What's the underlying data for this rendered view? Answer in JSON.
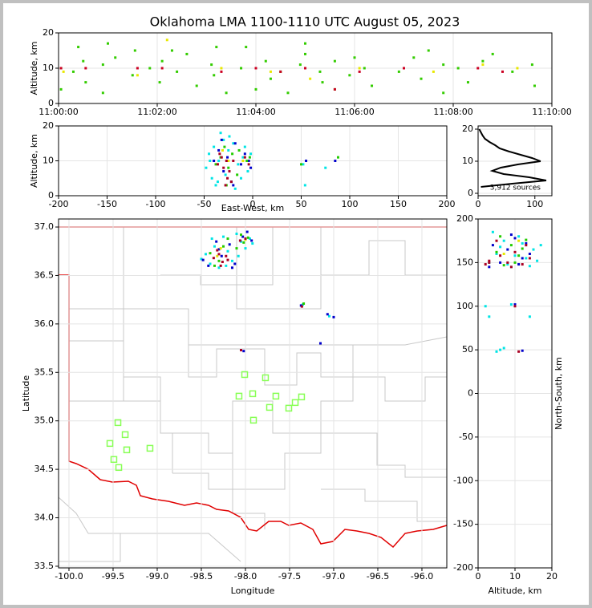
{
  "title": "Oklahoma LMA 1100-1110 UTC August 05, 2023",
  "chart_data": [
    {
      "type": "scatter",
      "ylabel": "Altitude, km",
      "xlim": [
        0,
        10
      ],
      "xticks": [
        {
          "value": 0,
          "label": "11:00:00"
        },
        {
          "value": 2,
          "label": "11:02:00"
        },
        {
          "value": 4,
          "label": "11:04:00"
        },
        {
          "value": 6,
          "label": "11:06:00"
        },
        {
          "value": 8,
          "label": "11:08:00"
        },
        {
          "value": 10,
          "label": "11:10:00"
        }
      ],
      "ylim": [
        0,
        20
      ],
      "yticks": [
        0,
        10,
        20
      ],
      "grid": true,
      "series": [
        {
          "color": "#33cc00",
          "x": [
            0.05,
            0.05,
            0.3,
            0.5,
            0.55,
            0.9,
            0.9,
            1.15,
            1.5,
            1.55,
            1.85,
            2.05,
            2.1,
            2.4,
            2.6,
            2.8,
            3.1,
            3.15,
            3.4,
            3.7,
            3.8,
            4.2,
            4.3,
            4.5,
            4.65,
            4.9,
            5.0,
            5.3,
            5.35,
            5.6,
            5.6,
            5.9,
            6.2,
            6.35,
            6.9,
            7.2,
            7.35,
            7.8,
            7.8,
            8.1,
            8.3,
            8.6,
            9.2,
            9.6,
            9.65,
            0.4,
            1.0,
            2.3,
            3.2,
            4.0,
            5.0,
            6.0,
            7.5,
            8.8
          ],
          "y": [
            10,
            4,
            9,
            12,
            6,
            11,
            3,
            13,
            8,
            15,
            10,
            6,
            12,
            9,
            14,
            5,
            11,
            8,
            3,
            10,
            16,
            12,
            7,
            9,
            3,
            11,
            14,
            9,
            6,
            12,
            4,
            8,
            10,
            5,
            9,
            13,
            7,
            11,
            3,
            10,
            6,
            12,
            9,
            11,
            5,
            16,
            17,
            15,
            16,
            4,
            17,
            13,
            15,
            14
          ]
        },
        {
          "color": "#e8e800",
          "x": [
            0.1,
            1.6,
            2.2,
            3.3,
            4.3,
            5.1,
            6.1,
            7.6,
            8.6,
            9.3
          ],
          "y": [
            9,
            8,
            18,
            10,
            9,
            7,
            10,
            9,
            11,
            10
          ]
        },
        {
          "color": "#cc0022",
          "x": [
            0.05,
            0.55,
            1.6,
            2.1,
            3.3,
            4.0,
            5.0,
            5.6,
            6.1,
            7.0,
            8.5,
            9.0,
            4.5
          ],
          "y": [
            10,
            10,
            10,
            10,
            9,
            10,
            10,
            4,
            9,
            10,
            10,
            9,
            9
          ]
        }
      ]
    },
    {
      "type": "scatter",
      "xlabel": "East-West, km",
      "ylabel": "Altitude, km",
      "xlim": [
        -200,
        200
      ],
      "xticks": [
        -200,
        -150,
        -100,
        -50,
        0,
        50,
        100,
        150,
        200
      ],
      "ylim": [
        0,
        20
      ],
      "yticks": [
        0,
        10,
        20
      ],
      "grid": true,
      "series": [
        {
          "color": "#00e5e5",
          "x": [
            -48,
            -45,
            -42,
            -40,
            -38,
            -35,
            -30,
            -28,
            -25,
            -22,
            -20,
            -15,
            -10,
            -5,
            -2,
            -44,
            -36,
            -24,
            -12,
            -8,
            52,
            54,
            75,
            -33,
            -18
          ],
          "y": [
            8,
            12,
            5,
            14,
            3,
            10,
            16,
            6,
            13,
            4,
            15,
            9,
            11,
            7,
            12,
            10,
            4,
            17,
            5,
            14,
            9,
            3,
            8,
            18,
            2
          ]
        },
        {
          "color": "#0000cc",
          "x": [
            -40,
            -35,
            -30,
            -26,
            -22,
            -18,
            -12,
            -8,
            -4,
            -2,
            -32,
            -20,
            85,
            55
          ],
          "y": [
            10,
            13,
            7,
            11,
            4,
            15,
            9,
            12,
            10,
            8,
            16,
            3,
            10,
            10
          ]
        },
        {
          "color": "#22cc00",
          "x": [
            -38,
            -33,
            -29,
            -25,
            -21,
            -16,
            -6,
            -3,
            -27,
            -14,
            88,
            50
          ],
          "y": [
            9,
            11,
            14,
            8,
            12,
            6,
            10,
            11,
            3,
            13,
            11,
            9
          ]
        },
        {
          "color": "#e8e800",
          "x": [
            -31,
            -25,
            -10
          ],
          "y": [
            13,
            10,
            10
          ]
        },
        {
          "color": "#aa0022",
          "x": [
            -36,
            -32,
            -30,
            -27,
            -24,
            -20,
            -34,
            -28,
            -22,
            -26,
            -8,
            -4
          ],
          "y": [
            9,
            11,
            8,
            10,
            7,
            10,
            12,
            3,
            4,
            5,
            11,
            9
          ]
        }
      ]
    },
    {
      "type": "line",
      "annotation": "3,912 sources",
      "xlim": [
        0,
        130
      ],
      "xticks": [
        0,
        100
      ],
      "ylim": [
        -0.75,
        21
      ],
      "yticks": [
        0,
        10,
        20
      ],
      "grid": true,
      "series": [
        {
          "color": "#000000",
          "x": [
            2,
            5,
            8,
            12,
            20,
            30,
            38,
            55,
            75,
            95,
            110,
            70,
            40,
            25,
            45,
            90,
            120,
            60,
            5
          ],
          "y": [
            20,
            19,
            18,
            17,
            16,
            15,
            14,
            13,
            12,
            11,
            10,
            9,
            8,
            7,
            6,
            5,
            4,
            3,
            2
          ]
        }
      ]
    },
    {
      "type": "scatter",
      "xlabel": "Longitude",
      "ylabel": "Latitude",
      "xlim": [
        -100.118,
        -95.718
      ],
      "xticks": [
        {
          "value": -100,
          "label": "-100.0"
        },
        -99.5,
        {
          "value": -99,
          "label": "-99.0"
        },
        -98.5,
        {
          "value": -98,
          "label": "-98.0"
        },
        -97.5,
        {
          "value": -97,
          "label": "-97.0"
        },
        -96.5,
        {
          "value": -96,
          "label": "-96.0"
        }
      ],
      "ylim": [
        33.483,
        37.083
      ],
      "yticks": [
        33.5,
        {
          "value": 34,
          "label": "34.0"
        },
        34.5,
        {
          "value": 35,
          "label": "35.0"
        },
        35.5,
        {
          "value": 36,
          "label": "36.0"
        },
        36.5,
        {
          "value": 37,
          "label": "37.0"
        }
      ],
      "grid": true,
      "series": [
        {
          "color": "#88ff55",
          "marker": "square-open",
          "x": [
            -99.445,
            -99.363,
            -99.536,
            -99.345,
            -99.082,
            -99.491,
            -99.436,
            -98.009,
            -97.773,
            -98.073,
            -97.918,
            -97.655,
            -97.364,
            -97.727,
            -97.509,
            -97.436,
            -97.909
          ],
          "y": [
            34.982,
            34.858,
            34.767,
            34.701,
            34.717,
            34.602,
            34.519,
            35.478,
            35.445,
            35.255,
            35.28,
            35.255,
            35.247,
            35.139,
            35.131,
            35.189,
            35.007
          ]
        },
        {
          "color": "#00e5e5",
          "x": [
            -98.5,
            -98.45,
            -98.4,
            -98.35,
            -98.3,
            -98.25,
            -98.2,
            -98.15,
            -98.1,
            -98.05,
            -98.0,
            -97.95,
            -98.38,
            -98.22,
            -98.08,
            -97.92,
            -97.35,
            -97.05
          ],
          "y": [
            36.67,
            36.72,
            36.62,
            36.8,
            36.58,
            36.9,
            36.75,
            36.65,
            36.93,
            36.85,
            36.78,
            36.88,
            36.88,
            36.6,
            36.7,
            36.83,
            36.2,
            36.08
          ]
        },
        {
          "color": "#0000cc",
          "x": [
            -98.48,
            -98.42,
            -98.33,
            -98.27,
            -98.18,
            -98.12,
            -98.03,
            -97.98,
            -97.93,
            -98.3,
            -98.15,
            -97.37,
            -97.07,
            -97.0,
            -98.02,
            -97.15
          ],
          "y": [
            36.66,
            36.6,
            36.85,
            36.7,
            36.82,
            36.62,
            36.9,
            36.95,
            36.86,
            36.77,
            36.58,
            36.19,
            36.1,
            36.07,
            35.72,
            35.8
          ]
        },
        {
          "color": "#22cc00",
          "x": [
            -98.4,
            -98.3,
            -98.25,
            -98.2,
            -98.1,
            -98.05,
            -97.97,
            -98.35,
            -98.02,
            -97.34
          ],
          "y": [
            36.73,
            36.65,
            36.8,
            36.88,
            36.78,
            36.92,
            36.89,
            36.6,
            36.84,
            36.21
          ]
        },
        {
          "color": "#e8e800",
          "x": [
            -98.28,
            -98.0,
            -98.32
          ],
          "y": [
            36.78,
            36.87,
            36.7
          ]
        },
        {
          "color": "#aa0022",
          "x": [
            -98.36,
            -98.3,
            -98.26,
            -98.22,
            -98.28,
            -98.32,
            -98.2,
            -98.06,
            -98.0,
            -98.05,
            -97.36
          ],
          "y": [
            36.68,
            36.72,
            36.64,
            36.7,
            36.6,
            36.76,
            36.66,
            36.86,
            36.88,
            35.73,
            36.18
          ]
        }
      ]
    },
    {
      "type": "scatter",
      "xlabel": "Altitude, km",
      "ylabel": "North-South, km",
      "ylabel_position": "right",
      "xlim": [
        0,
        20
      ],
      "xticks": [
        0,
        10,
        20
      ],
      "ylim": [
        -200,
        200
      ],
      "yticks": [
        -200,
        -150,
        -100,
        -50,
        0,
        50,
        100,
        150,
        200
      ],
      "grid": true,
      "series": [
        {
          "color": "#00e5e5",
          "x": [
            3,
            5,
            7,
            9,
            11,
            13,
            15,
            17,
            4,
            8,
            12,
            16,
            6,
            10,
            14,
            2,
            3,
            6,
            7,
            14,
            5,
            9
          ],
          "y": [
            150,
            160,
            175,
            145,
            180,
            155,
            165,
            170,
            185,
            148,
            172,
            152,
            168,
            158,
            146,
            100,
            88,
            50,
            52,
            88,
            48,
            102
          ]
        },
        {
          "color": "#0000cc",
          "x": [
            4,
            6,
            8,
            10,
            12,
            14,
            3,
            9,
            11,
            13,
            10,
            12
          ],
          "y": [
            170,
            150,
            165,
            178,
            155,
            160,
            145,
            182,
            148,
            172,
            102,
            49
          ]
        },
        {
          "color": "#22cc00",
          "x": [
            5,
            7,
            9,
            11,
            13,
            6,
            10,
            12
          ],
          "y": [
            162,
            147,
            170,
            158,
            176,
            180,
            150,
            166
          ]
        },
        {
          "color": "#e8e800",
          "x": [
            7,
            11
          ],
          "y": [
            160,
            175
          ]
        },
        {
          "color": "#aa0022",
          "x": [
            2,
            3,
            6,
            8,
            10,
            12,
            14,
            5,
            9,
            13,
            11,
            10,
            3
          ],
          "y": [
            148,
            152,
            158,
            150,
            162,
            148,
            155,
            175,
            145,
            170,
            48,
            100,
            150
          ]
        }
      ]
    }
  ]
}
